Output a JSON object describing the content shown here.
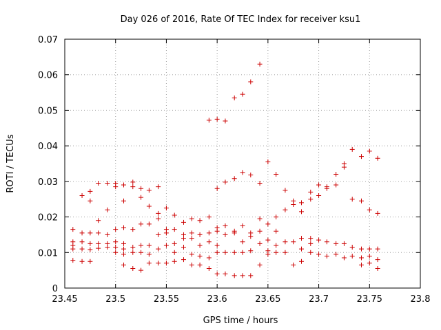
{
  "chart_data": {
    "type": "scatter",
    "title": "Day 026 of 2016, Rate Of TEC Index for receiver ksu1",
    "xlabel": "GPS time / hours",
    "ylabel": "ROTI / TECUs",
    "xlim": [
      23.45,
      23.8
    ],
    "ylim": [
      0,
      0.07
    ],
    "x_ticks": [
      "23.45",
      "23.5",
      "23.55",
      "23.6",
      "23.65",
      "23.7",
      "23.75",
      "23.8"
    ],
    "y_ticks": [
      "0",
      "0.01",
      "0.02",
      "0.03",
      "0.04",
      "0.05",
      "0.06",
      "0.07"
    ],
    "grid": true,
    "marker": "plus",
    "color": "#cc0000",
    "x": [
      23.458,
      23.458,
      23.458,
      23.458,
      23.458,
      23.467,
      23.467,
      23.467,
      23.467,
      23.467,
      23.475,
      23.475,
      23.475,
      23.475,
      23.475,
      23.475,
      23.483,
      23.483,
      23.483,
      23.483,
      23.483,
      23.492,
      23.492,
      23.492,
      23.492,
      23.492,
      23.5,
      23.5,
      23.5,
      23.5,
      23.5,
      23.5,
      23.508,
      23.508,
      23.508,
      23.508,
      23.508,
      23.508,
      23.508,
      23.517,
      23.517,
      23.517,
      23.517,
      23.517,
      23.517,
      23.525,
      23.525,
      23.525,
      23.525,
      23.525,
      23.525,
      23.533,
      23.533,
      23.533,
      23.533,
      23.533,
      23.533,
      23.542,
      23.542,
      23.542,
      23.542,
      23.542,
      23.542,
      23.55,
      23.55,
      23.55,
      23.55,
      23.55,
      23.558,
      23.558,
      23.558,
      23.558,
      23.558,
      23.567,
      23.567,
      23.567,
      23.567,
      23.567,
      23.575,
      23.575,
      23.575,
      23.575,
      23.575,
      23.583,
      23.583,
      23.583,
      23.583,
      23.583,
      23.592,
      23.592,
      23.592,
      23.592,
      23.592,
      23.592,
      23.6,
      23.6,
      23.6,
      23.6,
      23.6,
      23.6,
      23.6,
      23.608,
      23.608,
      23.608,
      23.608,
      23.608,
      23.608,
      23.617,
      23.617,
      23.617,
      23.617,
      23.617,
      23.617,
      23.625,
      23.625,
      23.625,
      23.625,
      23.625,
      23.625,
      23.633,
      23.633,
      23.633,
      23.633,
      23.633,
      23.633,
      23.642,
      23.642,
      23.642,
      23.642,
      23.642,
      23.642,
      23.65,
      23.65,
      23.65,
      23.65,
      23.65,
      23.658,
      23.658,
      23.658,
      23.658,
      23.658,
      23.667,
      23.667,
      23.667,
      23.667,
      23.675,
      23.675,
      23.675,
      23.675,
      23.683,
      23.683,
      23.683,
      23.683,
      23.683,
      23.692,
      23.692,
      23.692,
      23.692,
      23.692,
      23.7,
      23.7,
      23.7,
      23.7,
      23.708,
      23.708,
      23.708,
      23.708,
      23.717,
      23.717,
      23.717,
      23.717,
      23.725,
      23.725,
      23.725,
      23.725,
      23.733,
      23.733,
      23.733,
      23.733,
      23.742,
      23.742,
      23.742,
      23.742,
      23.742,
      23.75,
      23.75,
      23.75,
      23.75,
      23.75,
      23.758,
      23.758,
      23.758,
      23.758,
      23.758
    ],
    "y": [
      0.0165,
      0.013,
      0.012,
      0.011,
      0.0078,
      0.026,
      0.0155,
      0.013,
      0.011,
      0.0075,
      0.0272,
      0.0245,
      0.0155,
      0.0125,
      0.0108,
      0.0075,
      0.0295,
      0.019,
      0.0155,
      0.0125,
      0.0112,
      0.0295,
      0.022,
      0.015,
      0.0125,
      0.0115,
      0.0295,
      0.0285,
      0.0165,
      0.013,
      0.0115,
      0.01,
      0.029,
      0.0245,
      0.017,
      0.0125,
      0.011,
      0.0095,
      0.0065,
      0.0298,
      0.0285,
      0.0165,
      0.0115,
      0.01,
      0.0055,
      0.028,
      0.0255,
      0.018,
      0.012,
      0.01,
      0.005,
      0.0275,
      0.023,
      0.018,
      0.012,
      0.0095,
      0.007,
      0.0285,
      0.021,
      0.0195,
      0.015,
      0.011,
      0.007,
      0.0225,
      0.0165,
      0.0155,
      0.012,
      0.007,
      0.0205,
      0.0165,
      0.0125,
      0.01,
      0.0075,
      0.0185,
      0.015,
      0.014,
      0.0115,
      0.008,
      0.0195,
      0.0155,
      0.014,
      0.0095,
      0.0065,
      0.019,
      0.015,
      0.012,
      0.009,
      0.0065,
      0.0472,
      0.02,
      0.0155,
      0.013,
      0.0085,
      0.0055,
      0.0475,
      0.028,
      0.017,
      0.016,
      0.012,
      0.01,
      0.004,
      0.047,
      0.0298,
      0.0175,
      0.015,
      0.01,
      0.004,
      0.0535,
      0.0308,
      0.016,
      0.0155,
      0.01,
      0.0035,
      0.0545,
      0.0325,
      0.0175,
      0.013,
      0.01,
      0.0035,
      0.058,
      0.0318,
      0.0155,
      0.0145,
      0.0105,
      0.0035,
      0.063,
      0.0295,
      0.0195,
      0.016,
      0.0125,
      0.0065,
      0.0355,
      0.018,
      0.0135,
      0.0105,
      0.0095,
      0.032,
      0.02,
      0.016,
      0.012,
      0.01,
      0.0275,
      0.022,
      0.013,
      0.01,
      0.0245,
      0.0235,
      0.013,
      0.0065,
      0.024,
      0.0215,
      0.014,
      0.011,
      0.0075,
      0.027,
      0.025,
      0.014,
      0.0125,
      0.01,
      0.029,
      0.026,
      0.0135,
      0.0095,
      0.028,
      0.0285,
      0.013,
      0.009,
      0.032,
      0.029,
      0.0125,
      0.0095,
      0.035,
      0.034,
      0.0125,
      0.0085,
      0.039,
      0.025,
      0.0115,
      0.009,
      0.037,
      0.0245,
      0.011,
      0.0085,
      0.0065,
      0.0385,
      0.022,
      0.011,
      0.009,
      0.007,
      0.0365,
      0.021,
      0.011,
      0.008,
      0.0055
    ]
  }
}
